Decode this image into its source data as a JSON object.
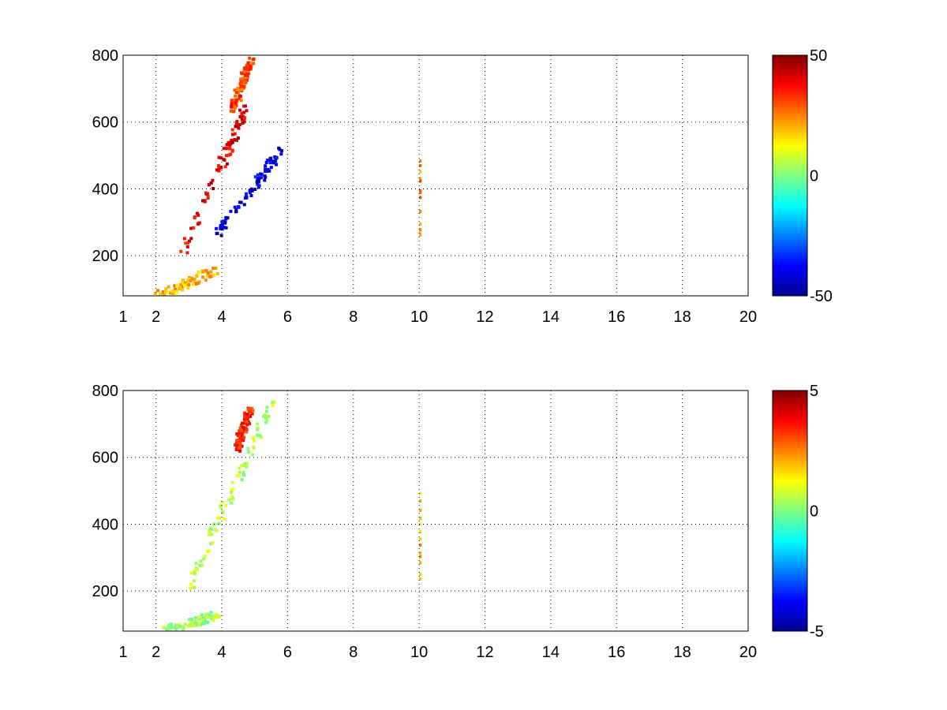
{
  "chart_data": [
    {
      "type": "heatmap",
      "title": "",
      "xlabel": "",
      "ylabel": "",
      "xlim": [
        1,
        20
      ],
      "ylim": [
        80,
        800
      ],
      "xticks": [
        1,
        2,
        4,
        6,
        8,
        10,
        12,
        14,
        16,
        18,
        20
      ],
      "xtick_labels": [
        "1",
        "2",
        "4",
        "6",
        "8",
        "10",
        "12",
        "14",
        "16",
        "18",
        "20"
      ],
      "yticks": [
        200,
        400,
        600,
        800
      ],
      "ytick_labels": [
        "200",
        "400",
        "600",
        "800"
      ],
      "grid": true,
      "colormap": "jet",
      "clim": [
        -50,
        50
      ],
      "colorbar_ticks": [
        -50,
        0,
        50
      ],
      "colorbar_labels": [
        "-50",
        "0",
        "50"
      ],
      "features": [
        {
          "x": [
            2.8,
            4.7
          ],
          "y": [
            220,
            650
          ],
          "value": 40
        },
        {
          "x": [
            3.8,
            5.8
          ],
          "y": [
            270,
            520
          ],
          "value": -40
        },
        {
          "x": [
            4.3,
            4.9
          ],
          "y": [
            650,
            800
          ],
          "value": 30
        },
        {
          "x": [
            10.0,
            10.0
          ],
          "y": [
            260,
            510
          ],
          "value": 25
        },
        {
          "x": [
            2.0,
            3.7
          ],
          "y": [
            80,
            160
          ],
          "value": 20
        }
      ]
    },
    {
      "type": "heatmap",
      "title": "",
      "xlabel": "",
      "ylabel": "",
      "xlim": [
        1,
        20
      ],
      "ylim": [
        80,
        800
      ],
      "xticks": [
        1,
        2,
        4,
        6,
        8,
        10,
        12,
        14,
        16,
        18,
        20
      ],
      "xtick_labels": [
        "1",
        "2",
        "4",
        "6",
        "8",
        "10",
        "12",
        "14",
        "16",
        "18",
        "20"
      ],
      "yticks": [
        200,
        400,
        600,
        800
      ],
      "ytick_labels": [
        "200",
        "400",
        "600",
        "800"
      ],
      "grid": true,
      "colormap": "jet",
      "clim": [
        -5,
        5
      ],
      "colorbar_ticks": [
        -5,
        0,
        5
      ],
      "colorbar_labels": [
        "-5",
        "0",
        "5"
      ],
      "features": [
        {
          "x": [
            3.0,
            5.5
          ],
          "y": [
            220,
            780
          ],
          "value": 0.5
        },
        {
          "x": [
            2.0,
            3.8
          ],
          "y": [
            80,
            130
          ],
          "value": 0.3
        },
        {
          "x": [
            10.0,
            10.0
          ],
          "y": [
            250,
            510
          ],
          "value": 2.0
        },
        {
          "x": [
            4.4,
            4.8
          ],
          "y": [
            630,
            750
          ],
          "value": 3.5
        }
      ]
    }
  ]
}
